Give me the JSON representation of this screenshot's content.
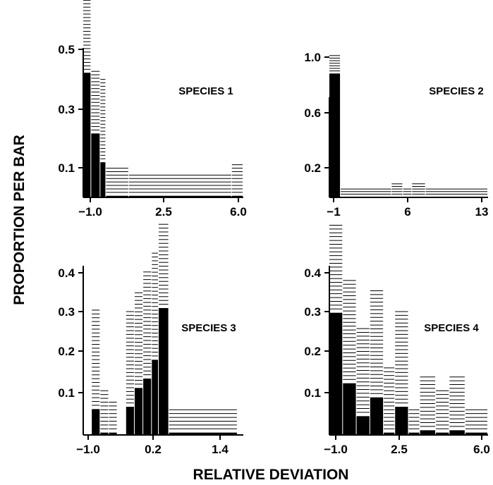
{
  "figure": {
    "ylabel": "PROPORTION PER BAR",
    "xlabel": "RELATIVE DEVIATION"
  },
  "chart_data": [
    {
      "type": "bar",
      "title": "SPECIES 1",
      "xlim": [
        -1.0,
        6.0
      ],
      "ylim": [
        0,
        0.6
      ],
      "xticks": [
        "-1.0",
        "2.5",
        "6.0"
      ],
      "yticks": [
        "0.5",
        "0.3",
        "0.1"
      ],
      "bins": [
        {
          "x0": -1.0,
          "x1": -0.65,
          "value": 0.39,
          "upper": 0.63
        },
        {
          "x0": -0.65,
          "x1": -0.25,
          "value": 0.2,
          "upper": 0.4
        },
        {
          "x0": -0.25,
          "x1": 0.0,
          "value": 0.11,
          "upper": 0.37
        },
        {
          "x0": 0.0,
          "x1": 1.0,
          "value": 0.005,
          "upper": 0.1
        },
        {
          "x0": 1.0,
          "x1": 5.5,
          "value": 0.005,
          "upper": 0.07
        },
        {
          "x0": 5.5,
          "x1": 6.0,
          "value": 0.005,
          "upper": 0.11
        }
      ]
    },
    {
      "type": "bar",
      "title": "SPECIES 2",
      "xlim": [
        -1,
        13
      ],
      "ylim": [
        0,
        1.0
      ],
      "xticks": [
        "-1",
        "6",
        "13"
      ],
      "yticks": [
        "1.0",
        "0.6",
        "0.2"
      ],
      "bins": [
        {
          "x0": -1,
          "x1": 0,
          "value": 0.87,
          "upper": 1.0
        },
        {
          "x0": 0,
          "x1": 4.5,
          "value": 0.005,
          "upper": 0.06
        },
        {
          "x0": 4.5,
          "x1": 5.5,
          "value": 0.005,
          "upper": 0.1
        },
        {
          "x0": 5.5,
          "x1": 6.3,
          "value": 0.005,
          "upper": 0.07
        },
        {
          "x0": 6.3,
          "x1": 7.5,
          "value": 0.005,
          "upper": 0.1
        },
        {
          "x0": 7.5,
          "x1": 13,
          "value": 0.005,
          "upper": 0.06
        }
      ]
    },
    {
      "type": "bar",
      "title": "SPECIES 3",
      "xlim": [
        -1.2,
        1.6
      ],
      "ylim": [
        0,
        0.45
      ],
      "xticks": [
        "-1.0",
        "0.2",
        "1.4"
      ],
      "yticks": [
        "0.4",
        "0.3",
        "0.2",
        "0.1"
      ],
      "bins": [
        {
          "x0": -1.05,
          "x1": -0.9,
          "value": 0.055,
          "upper": 0.27
        },
        {
          "x0": -0.9,
          "x1": -0.75,
          "value": 0.005,
          "upper": 0.1
        },
        {
          "x0": -0.75,
          "x1": -0.6,
          "value": 0.005,
          "upper": 0.07
        },
        {
          "x0": -0.45,
          "x1": -0.3,
          "value": 0.06,
          "upper": 0.27
        },
        {
          "x0": -0.3,
          "x1": -0.15,
          "value": 0.1,
          "upper": 0.31
        },
        {
          "x0": -0.15,
          "x1": 0.0,
          "value": 0.12,
          "upper": 0.35
        },
        {
          "x0": 0.0,
          "x1": 0.12,
          "value": 0.16,
          "upper": 0.39
        },
        {
          "x0": 0.12,
          "x1": 0.3,
          "value": 0.27,
          "upper": 0.45
        },
        {
          "x0": 0.3,
          "x1": 1.5,
          "value": 0.005,
          "upper": 0.06
        }
      ]
    },
    {
      "type": "bar",
      "title": "SPECIES 4",
      "xlim": [
        -1.0,
        6.0
      ],
      "ylim": [
        0,
        0.45
      ],
      "xticks": [
        "-1.0",
        "2.5",
        "6.0"
      ],
      "yticks": [
        "0.4",
        "0.3",
        "0.2",
        "0.1"
      ],
      "bins": [
        {
          "x0": -1.0,
          "x1": -0.4,
          "value": 0.26,
          "upper": 0.45
        },
        {
          "x0": -0.4,
          "x1": 0.2,
          "value": 0.11,
          "upper": 0.33
        },
        {
          "x0": 0.2,
          "x1": 0.8,
          "value": 0.04,
          "upper": 0.23
        },
        {
          "x0": 0.8,
          "x1": 1.4,
          "value": 0.08,
          "upper": 0.31
        },
        {
          "x0": 1.4,
          "x1": 1.9,
          "value": 0.005,
          "upper": 0.15
        },
        {
          "x0": 1.9,
          "x1": 2.5,
          "value": 0.06,
          "upper": 0.27
        },
        {
          "x0": 2.5,
          "x1": 3.0,
          "value": 0.005,
          "upper": 0.06
        },
        {
          "x0": 3.0,
          "x1": 3.7,
          "value": 0.01,
          "upper": 0.13
        },
        {
          "x0": 3.7,
          "x1": 4.3,
          "value": 0.005,
          "upper": 0.1
        },
        {
          "x0": 4.3,
          "x1": 5.0,
          "value": 0.01,
          "upper": 0.13
        },
        {
          "x0": 5.0,
          "x1": 6.0,
          "value": 0.005,
          "upper": 0.06
        }
      ]
    }
  ]
}
